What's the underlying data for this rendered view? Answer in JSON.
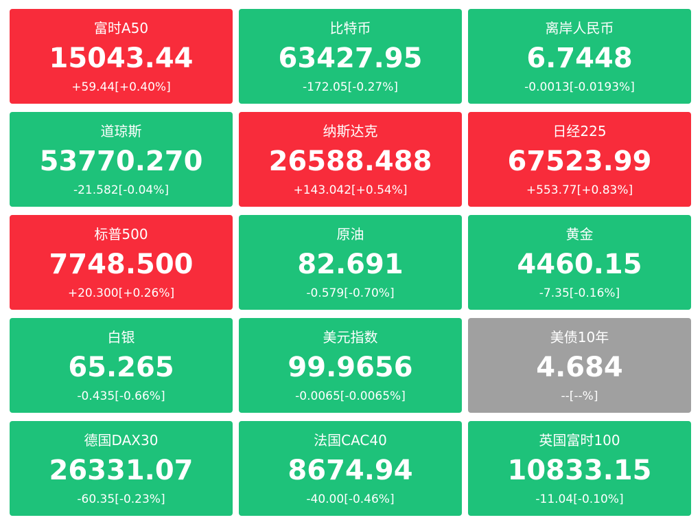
{
  "tiles": [
    {
      "name": "富时A50",
      "price": "15043.44",
      "change": "+59.44[+0.40%]",
      "color": "#f82c3b"
    },
    {
      "name": "比特币",
      "price": "63427.95",
      "change": "-172.05[-0.27%]",
      "color": "#1ec27a"
    },
    {
      "name": "离岸人民币",
      "price": "6.7448",
      "change": "-0.0013[-0.0193%]",
      "color": "#1ec27a"
    },
    {
      "name": "道琼斯",
      "price": "53770.270",
      "change": "-21.582[-0.04%]",
      "color": "#1ec27a"
    },
    {
      "name": "纳斯达克",
      "price": "26588.488",
      "change": "+143.042[+0.54%]",
      "color": "#f82c3b"
    },
    {
      "name": "日经225",
      "price": "67523.99",
      "change": "+553.77[+0.83%]",
      "color": "#f82c3b"
    },
    {
      "name": "标普500",
      "price": "7748.500",
      "change": "+20.300[+0.26%]",
      "color": "#f82c3b"
    },
    {
      "name": "原油",
      "price": "82.691",
      "change": "-0.579[-0.70%]",
      "color": "#1ec27a"
    },
    {
      "name": "黄金",
      "price": "4460.15",
      "change": "-7.35[-0.16%]",
      "color": "#1ec27a"
    },
    {
      "name": "白银",
      "price": "65.265",
      "change": "-0.435[-0.66%]",
      "color": "#1ec27a"
    },
    {
      "name": "美元指数",
      "price": "99.9656",
      "change": "-0.0065[-0.0065%]",
      "color": "#1ec27a"
    },
    {
      "name": "美债10年",
      "price": "4.684",
      "change": "--[--%]",
      "color": "#a0a0a0"
    },
    {
      "name": "德国DAX30",
      "price": "26331.07",
      "change": "-60.35[-0.23%]",
      "color": "#1ec27a"
    },
    {
      "name": "法国CAC40",
      "price": "8674.94",
      "change": "-40.00[-0.46%]",
      "color": "#1ec27a"
    },
    {
      "name": "英国富时100",
      "price": "10833.15",
      "change": "-11.04[-0.10%]",
      "color": "#1ec27a"
    }
  ]
}
